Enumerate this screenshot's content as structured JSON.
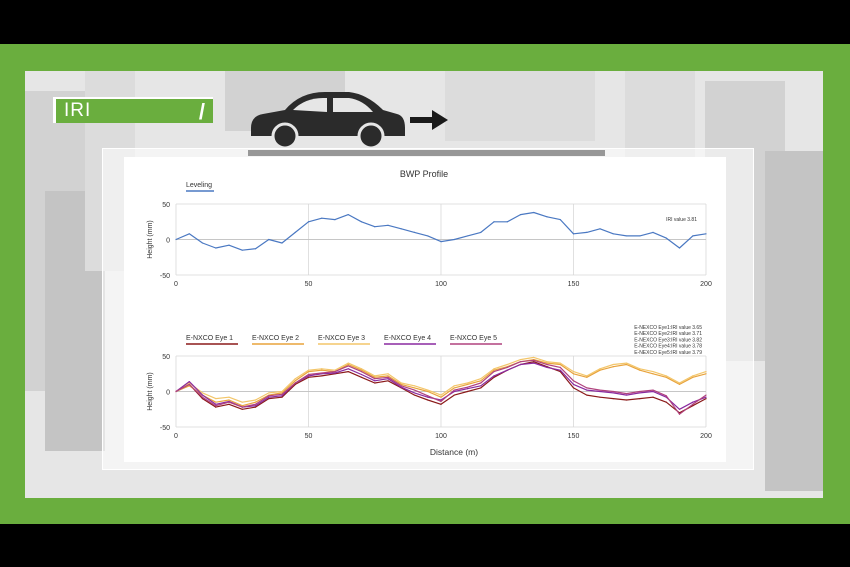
{
  "header": {
    "tag_label": "IRI"
  },
  "chart_data": [
    {
      "type": "line",
      "title": "BWP Profile",
      "xlabel": "",
      "ylabel": "Height (mm)",
      "xlim": [
        0,
        200
      ],
      "ylim": [
        -50,
        50
      ],
      "xticks": [
        0,
        50,
        100,
        150,
        200
      ],
      "yticks": [
        50,
        0,
        -50
      ],
      "grid": true,
      "legend_position": "top-left",
      "annotation": "IRI value 3.81",
      "x": [
        0,
        5,
        10,
        15,
        20,
        25,
        30,
        35,
        40,
        45,
        50,
        55,
        60,
        65,
        70,
        75,
        80,
        85,
        90,
        95,
        100,
        105,
        110,
        115,
        120,
        125,
        130,
        135,
        140,
        145,
        150,
        155,
        160,
        165,
        170,
        175,
        180,
        185,
        190,
        195,
        200
      ],
      "series": [
        {
          "name": "Leveling",
          "color": "#4a78c2",
          "values": [
            0,
            8,
            -5,
            -12,
            -8,
            -15,
            -13,
            0,
            -5,
            10,
            25,
            30,
            28,
            35,
            25,
            18,
            20,
            15,
            10,
            5,
            -3,
            0,
            5,
            10,
            25,
            25,
            35,
            38,
            32,
            28,
            8,
            10,
            15,
            8,
            5,
            5,
            10,
            2,
            -12,
            5,
            8
          ]
        }
      ]
    },
    {
      "type": "line",
      "title": "",
      "xlabel": "Distance (m)",
      "ylabel": "Height (mm)",
      "xlim": [
        0,
        200
      ],
      "ylim": [
        -50,
        50
      ],
      "xticks": [
        0,
        50,
        100,
        150,
        200
      ],
      "yticks": [
        50,
        0,
        -50
      ],
      "grid": true,
      "legend_position": "top",
      "annotations": [
        "E-NEXCO Eye1:IRI value 3.65",
        "E-NEXCO Eye2:IRI value 3.71",
        "E-NEXCO Eye3:IRI value 3.82",
        "E-NEXCO Eye4:IRI value 3.78",
        "E-NEXCO Eye5:IRI value 3.79"
      ],
      "x": [
        0,
        5,
        10,
        15,
        20,
        25,
        30,
        35,
        40,
        45,
        50,
        55,
        60,
        65,
        70,
        75,
        80,
        85,
        90,
        95,
        100,
        105,
        110,
        115,
        120,
        125,
        130,
        135,
        140,
        145,
        150,
        155,
        160,
        165,
        170,
        175,
        180,
        185,
        190,
        195,
        200
      ],
      "series": [
        {
          "name": "E-NXCO Eye 1",
          "color": "#8b1a1a",
          "values": [
            0,
            10,
            -10,
            -22,
            -18,
            -25,
            -22,
            -10,
            -8,
            10,
            20,
            22,
            25,
            28,
            20,
            12,
            15,
            5,
            -5,
            -12,
            -18,
            -5,
            0,
            5,
            20,
            30,
            38,
            42,
            35,
            28,
            5,
            -5,
            -8,
            -10,
            -12,
            -10,
            -8,
            -15,
            -30,
            -20,
            -10
          ]
        },
        {
          "name": "E-NXCO Eye 2",
          "color": "#e8a33c",
          "values": [
            0,
            8,
            -5,
            -15,
            -12,
            -20,
            -15,
            -5,
            -2,
            15,
            28,
            30,
            28,
            38,
            30,
            20,
            22,
            10,
            5,
            0,
            -8,
            5,
            10,
            15,
            30,
            35,
            42,
            45,
            40,
            38,
            25,
            20,
            30,
            35,
            38,
            30,
            25,
            20,
            10,
            20,
            25
          ]
        },
        {
          "name": "E-NXCO Eye 3",
          "color": "#f3c66a",
          "values": [
            0,
            12,
            -2,
            -10,
            -8,
            -15,
            -12,
            -2,
            0,
            18,
            30,
            32,
            30,
            40,
            32,
            22,
            25,
            12,
            8,
            2,
            -5,
            8,
            12,
            18,
            32,
            38,
            45,
            48,
            42,
            40,
            28,
            22,
            32,
            38,
            40,
            32,
            28,
            22,
            12,
            22,
            28
          ]
        },
        {
          "name": "E-NXCO Eye 4",
          "color": "#8a2aa0",
          "values": [
            0,
            14,
            -5,
            -18,
            -14,
            -22,
            -20,
            -8,
            -6,
            12,
            22,
            25,
            26,
            32,
            24,
            15,
            18,
            6,
            -2,
            -8,
            -12,
            0,
            4,
            8,
            22,
            30,
            38,
            40,
            34,
            30,
            10,
            2,
            0,
            -2,
            -5,
            -2,
            0,
            -8,
            -25,
            -15,
            -8
          ]
        },
        {
          "name": "E-NXCO Eye 5",
          "color": "#b0427e",
          "values": [
            0,
            10,
            -8,
            -20,
            -15,
            -22,
            -18,
            -6,
            -4,
            12,
            24,
            26,
            28,
            36,
            28,
            18,
            20,
            8,
            2,
            -6,
            -14,
            2,
            6,
            12,
            28,
            34,
            42,
            44,
            38,
            34,
            15,
            5,
            2,
            0,
            -3,
            0,
            2,
            -6,
            -32,
            -18,
            -5
          ]
        }
      ]
    }
  ]
}
